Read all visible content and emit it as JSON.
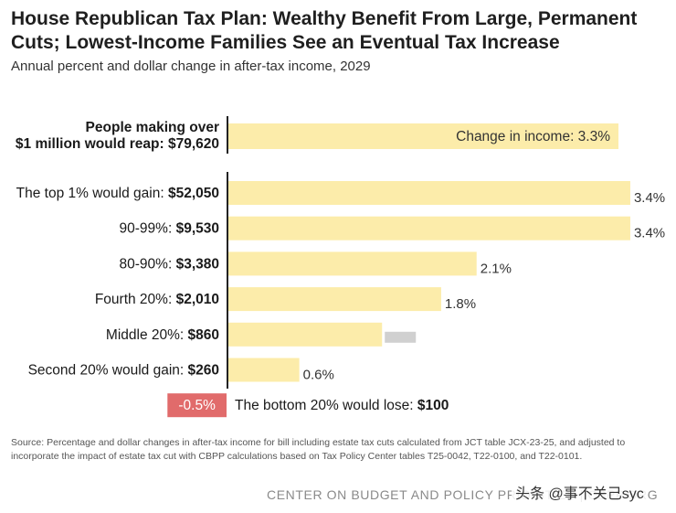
{
  "header": {
    "title": "House Republican Tax Plan: Wealthy Benefit From Large, Permanent Cuts; Lowest-Income Families See an Eventual Tax Increase",
    "subtitle": "Annual percent and dollar change in after-tax income, 2029"
  },
  "colors": {
    "bar": "#fcecaa",
    "negative_bar": "#e16b6b",
    "axis": "#222222"
  },
  "chart_data": {
    "type": "bar",
    "orientation": "horizontal",
    "unit": "percent change in after-tax income",
    "groups": [
      {
        "rows": [
          {
            "label_prefix": "People making over",
            "label_line2_prefix": "$1 million would reap: ",
            "amount": "$79,620",
            "value": 3.3,
            "value_label": "Change in income: 3.3%",
            "label_inside": true
          }
        ]
      },
      {
        "rows": [
          {
            "label_prefix": "The top 1% would gain: ",
            "amount": "$52,050",
            "value": 3.4,
            "value_label": "3.4%"
          },
          {
            "label_prefix": "90-99%: ",
            "amount": "$9,530",
            "value": 3.4,
            "value_label": "3.4%"
          },
          {
            "label_prefix": "80-90%: ",
            "amount": "$3,380",
            "value": 2.1,
            "value_label": "2.1%"
          },
          {
            "label_prefix": "Fourth 20%: ",
            "amount": "$2,010",
            "value": 1.8,
            "value_label": "1.8%"
          },
          {
            "label_prefix": "Middle 20%: ",
            "amount": "$860",
            "value": 1.3,
            "value_label": ""
          },
          {
            "label_prefix": "Second 20% would gain: ",
            "amount": "$260",
            "value": 0.6,
            "value_label": "0.6%"
          },
          {
            "label_prefix": "The bottom 20% would lose: ",
            "amount": "$100",
            "value": -0.5,
            "value_label": "-0.5%",
            "negative": true
          }
        ]
      }
    ]
  },
  "footnote": {
    "source": "Source: Percentage and dollar changes in after-tax income for bill including estate tax cuts calculated from JCT table JCX-23-25, and adjusted to incorporate the impact of estate tax cut with CBPP calculations based on Tax Policy Center tables T25-0042, T22-0100, and T22-0101.",
    "organization": "CENTER ON BUDGET AND POLICY PRIORITIES | CBPP.ORG",
    "watermark": "头条 @事不关己syc"
  }
}
